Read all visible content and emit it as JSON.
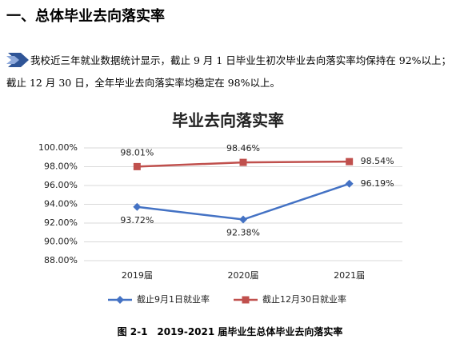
{
  "heading": "一、总体毕业去向落实率",
  "paragraph": "我校近三年就业数据统计显示，截止 9 月 1 日毕业生初次毕业去向落实率均保持在 92%以上；截止 12 月 30 日，全年毕业去向落实率均稳定在 98%以上。",
  "chart_data": {
    "type": "line",
    "title": "毕业去向落实率",
    "categories": [
      "2019届",
      "2020届",
      "2021届"
    ],
    "series": [
      {
        "name": "截止9月1日就业率",
        "color": "#4472c4",
        "marker": "diamond",
        "values": [
          93.72,
          92.38,
          96.19
        ],
        "value_labels": [
          "93.72%",
          "92.38%",
          "96.19%"
        ]
      },
      {
        "name": "截止12月30日就业率",
        "color": "#c0504d",
        "marker": "square",
        "values": [
          98.01,
          98.46,
          98.54
        ],
        "value_labels": [
          "98.01%",
          "98.46%",
          "98.54%"
        ]
      }
    ],
    "ylim": [
      88,
      100
    ],
    "yticks": [
      {
        "value": 88,
        "label": "88.00%"
      },
      {
        "value": 90,
        "label": "90.00%"
      },
      {
        "value": 92,
        "label": "92.00%"
      },
      {
        "value": 94,
        "label": "94.00%"
      },
      {
        "value": 96,
        "label": "96.00%"
      },
      {
        "value": 98,
        "label": "98.00%"
      },
      {
        "value": 100,
        "label": "100.00%"
      }
    ],
    "grid": true,
    "legend": "bottom"
  },
  "caption": "图 2-1　2019-2021 届毕业生总体毕业去向落实率"
}
